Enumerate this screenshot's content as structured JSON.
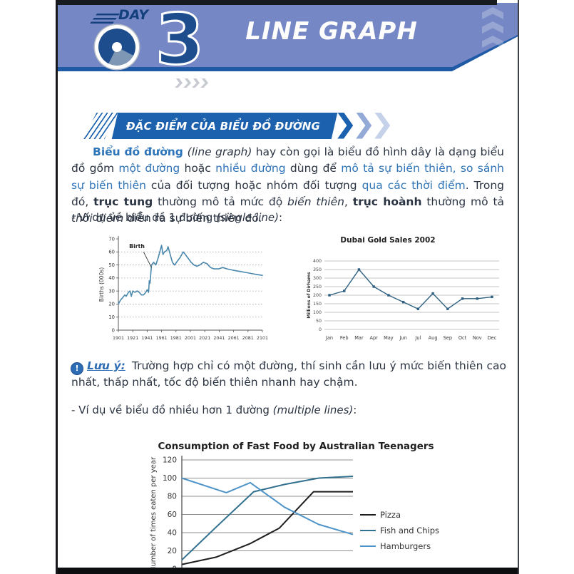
{
  "header": {
    "day_label": "DAY",
    "day_number": "03",
    "day_digit": "3",
    "title": "LINE GRAPH"
  },
  "section": {
    "title": "ĐẶC ĐIỂM CỦA BIỂU ĐỒ ĐƯỜNG"
  },
  "intro": {
    "s1": "Biểu đồ đường ",
    "s2": "(line graph)",
    "s3": " hay còn gọi là biểu đồ hình dây là dạng biểu đồ gồm ",
    "s4": "một đường",
    "s5": " hoặc ",
    "s6": "nhiều đường",
    "s7": " dùng để ",
    "s8": "mô tả sự biến thiên, so sánh sự biến thiên",
    "s9": " của đối tượng hoặc nhóm đối tượng ",
    "s10": "qua các thời điểm",
    "s11": ". Trong đó, ",
    "s12": "trục tung",
    "s13": " thường mô tả mức độ ",
    "s14": "biến thiên",
    "s15": ", ",
    "s16": "trục hoành",
    "s17": " thường mô tả ",
    "s18": "thời điểm",
    "s19": " diễn ra sự biến thiên đó."
  },
  "examples": {
    "single_prefix": "- Ví dụ về biểu đồ 1 đường ",
    "single_italic": "(single line)",
    "single_suffix": ":",
    "multi_prefix": "- Ví dụ về biểu đồ nhiều hơn 1 đường ",
    "multi_italic": "(multiple lines)",
    "multi_suffix": ":"
  },
  "note": {
    "icon_glyph": "!",
    "label": "Lưu ý:",
    "text": " Trường hợp chỉ có một đường, thí sinh cần lưu ý mức biến thiên cao nhất, thấp nhất, tốc độ biến thiên nhanh hay chậm."
  },
  "colors": {
    "banner_fill": "#7587c4",
    "banner_border": "#1f5aa7",
    "logo_navy": "#1d4d8d",
    "section_blue": "#1b61ae",
    "text_blue": "#2e74b8",
    "note_blue": "#2e6db4",
    "ink": "#2b3442"
  },
  "chart_data": [
    {
      "id": "births",
      "type": "line",
      "title": "",
      "ylabel": "Births (000s)",
      "ylim": [
        0,
        70
      ],
      "ytick_step": 10,
      "x_ticks": [
        1901,
        1921,
        1941,
        1961,
        1981,
        2001,
        2021,
        2041,
        2061,
        2081,
        2101
      ],
      "grid": "dotted-horizontal",
      "annotation": {
        "text": "Birth",
        "text_at": [
          1916,
          63
        ],
        "line_from": [
          1936,
          60
        ],
        "line_to": [
          1947,
          48
        ]
      },
      "series": [
        {
          "name": "Birth",
          "color": "#4a87ac",
          "points": [
            [
              1901,
              20
            ],
            [
              1904,
              23
            ],
            [
              1907,
              25
            ],
            [
              1910,
              27
            ],
            [
              1912,
              26
            ],
            [
              1915,
              29
            ],
            [
              1917,
              30
            ],
            [
              1919,
              26
            ],
            [
              1921,
              30
            ],
            [
              1924,
              29
            ],
            [
              1927,
              30
            ],
            [
              1930,
              29
            ],
            [
              1933,
              27
            ],
            [
              1936,
              27
            ],
            [
              1939,
              29
            ],
            [
              1941,
              31
            ],
            [
              1943,
              29
            ],
            [
              1944,
              38
            ],
            [
              1945,
              36
            ],
            [
              1947,
              50
            ],
            [
              1950,
              52
            ],
            [
              1953,
              50
            ],
            [
              1956,
              55
            ],
            [
              1959,
              61
            ],
            [
              1961,
              65
            ],
            [
              1963,
              58
            ],
            [
              1965,
              60
            ],
            [
              1968,
              61
            ],
            [
              1970,
              64
            ],
            [
              1973,
              58
            ],
            [
              1976,
              52
            ],
            [
              1979,
              50
            ],
            [
              1983,
              53
            ],
            [
              1987,
              56
            ],
            [
              1991,
              60
            ],
            [
              1994,
              58
            ],
            [
              1998,
              55
            ],
            [
              2002,
              52
            ],
            [
              2006,
              50
            ],
            [
              2010,
              49
            ],
            [
              2014,
              50
            ],
            [
              2019,
              52
            ],
            [
              2024,
              51
            ],
            [
              2029,
              48
            ],
            [
              2034,
              47
            ],
            [
              2040,
              47
            ],
            [
              2046,
              48
            ],
            [
              2052,
              47
            ],
            [
              2060,
              46
            ],
            [
              2070,
              45
            ],
            [
              2080,
              44
            ],
            [
              2090,
              43
            ],
            [
              2101,
              42
            ]
          ]
        }
      ]
    },
    {
      "id": "dubai",
      "type": "line",
      "title": "Dubai Gold Sales 2002",
      "ylabel": "Millions of Dirhams",
      "ylim": [
        0,
        400
      ],
      "ytick_step": 50,
      "grid": "solid-horizontal",
      "marker": "square",
      "categories": [
        "Jan",
        "Feb",
        "Mar",
        "Apr",
        "May",
        "Jun",
        "Jul",
        "Aug",
        "Sep",
        "Oct",
        "Nov",
        "Dec"
      ],
      "values": [
        200,
        225,
        350,
        250,
        200,
        160,
        120,
        210,
        120,
        180,
        180,
        190
      ],
      "color": "#2d5f80"
    },
    {
      "id": "fastfood",
      "type": "line",
      "title": "Consumption of Fast Food by Australian Teenagers",
      "ylabel": "Number of times eaten per year",
      "ylim": [
        0,
        120
      ],
      "ytick_step": 20,
      "grid": "solid-horizontal",
      "legend_position": "right",
      "x_axis_labels_visible": false,
      "series": [
        {
          "name": "Pizza",
          "color": "#1f1f1f",
          "points": [
            [
              0,
              5
            ],
            [
              0.2,
              13
            ],
            [
              0.4,
              28
            ],
            [
              0.57,
              45
            ],
            [
              0.67,
              65
            ],
            [
              0.77,
              85
            ],
            [
              1,
              85
            ]
          ]
        },
        {
          "name": "Fish and Chips",
          "color": "#31708f",
          "points": [
            [
              0,
              10
            ],
            [
              0.2,
              46
            ],
            [
              0.42,
              85
            ],
            [
              0.6,
              93
            ],
            [
              0.8,
              100
            ],
            [
              1,
              102
            ]
          ]
        },
        {
          "name": "Hamburgers",
          "color": "#4f94c8",
          "points": [
            [
              0,
              100
            ],
            [
              0.26,
              84
            ],
            [
              0.4,
              95
            ],
            [
              0.6,
              68
            ],
            [
              0.8,
              49
            ],
            [
              1,
              38
            ]
          ]
        }
      ]
    }
  ]
}
